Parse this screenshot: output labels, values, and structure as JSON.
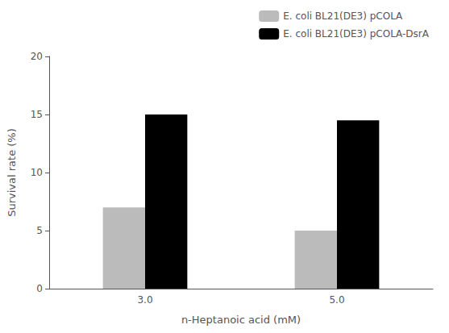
{
  "chart_data": {
    "type": "bar",
    "categories": [
      "3.0",
      "5.0"
    ],
    "xlabel": "n-Heptanoic acid (mM)",
    "ylabel": "Survival rate (%)",
    "series": [
      {
        "name": "E. coli BL21(DE3) pCOLA",
        "color": "#bbbbbb",
        "values": [
          7.0,
          5.0
        ]
      },
      {
        "name": "E. coli BL21(DE3) pCOLA-DsrA",
        "color": "#000000",
        "values": [
          15.0,
          14.5
        ]
      }
    ],
    "ylim": [
      0,
      20
    ],
    "yticks": [
      0,
      5,
      10,
      15,
      20
    ],
    "grid": false,
    "legend": "upper right"
  }
}
